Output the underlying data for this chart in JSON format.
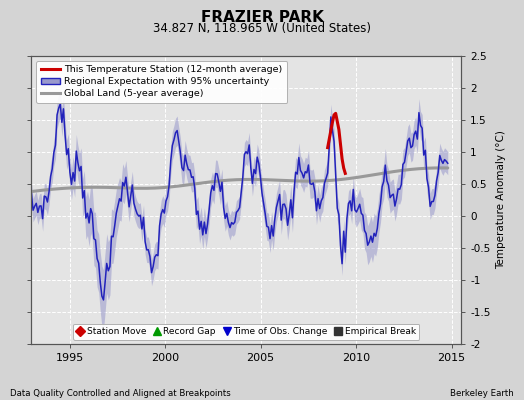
{
  "title": "FRAZIER PARK",
  "subtitle": "34.827 N, 118.965 W (United States)",
  "ylabel": "Temperature Anomaly (°C)",
  "footer_left": "Data Quality Controlled and Aligned at Breakpoints",
  "footer_right": "Berkeley Earth",
  "xlim": [
    1993.0,
    2015.5
  ],
  "ylim": [
    -2.0,
    2.5
  ],
  "yticks": [
    -2,
    -1.5,
    -1,
    -0.5,
    0,
    0.5,
    1,
    1.5,
    2,
    2.5
  ],
  "xticks": [
    1995,
    2000,
    2005,
    2010,
    2015
  ],
  "bg_color": "#d4d4d4",
  "plot_bg_color": "#e4e4e4",
  "regional_color": "#2222bb",
  "regional_fill_color": "#9999cc",
  "global_color": "#999999",
  "station_color": "#cc0000",
  "legend_items": [
    {
      "label": "This Temperature Station (12-month average)",
      "color": "#cc0000",
      "lw": 2.5
    },
    {
      "label": "Regional Expectation with 95% uncertainty",
      "color": "#2222bb",
      "lw": 1.5
    },
    {
      "label": "Global Land (5-year average)",
      "color": "#999999",
      "lw": 2.0
    }
  ],
  "bottom_legend": [
    {
      "label": "Station Move",
      "color": "#cc0000",
      "marker": "D"
    },
    {
      "label": "Record Gap",
      "color": "#009900",
      "marker": "^"
    },
    {
      "label": "Time of Obs. Change",
      "color": "#0000cc",
      "marker": "v"
    },
    {
      "label": "Empirical Break",
      "color": "#333333",
      "marker": "s"
    }
  ]
}
